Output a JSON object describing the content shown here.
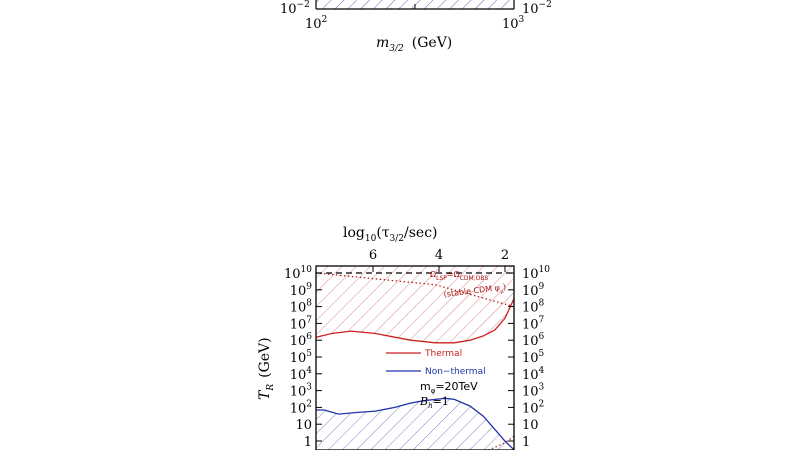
{
  "top_panel": {
    "x_tick_left_base": "10",
    "x_tick_left_exp": "2",
    "x_tick_right_base": "10",
    "x_tick_right_exp": "3",
    "y_tick_left": "10",
    "y_tick_left_exp": "−2",
    "y_tick_right": "10",
    "y_tick_right_exp": "−2",
    "xlabel_m": "m",
    "xlabel_sub": "3/2",
    "xlabel_unit": "(GeV)"
  },
  "chart_data": {
    "type": "area",
    "title": "",
    "top_axis_label_pre": "log",
    "top_axis_label_sub": "10",
    "top_axis_label_mid": "(τ",
    "top_axis_label_sub2": "3/2",
    "top_axis_label_post": "/sec)",
    "top_ticks": [
      "6",
      "4",
      "2"
    ],
    "top_tick_values": [
      6,
      4,
      2
    ],
    "ylabel_T": "T",
    "ylabel_sub": "R",
    "ylabel_unit": "(GeV)",
    "y_scale": "log",
    "y_ticks": [
      {
        "base": "10",
        "exp": "10",
        "value": 10000000000.0
      },
      {
        "base": "10",
        "exp": "9",
        "value": 1000000000.0
      },
      {
        "base": "10",
        "exp": "8",
        "value": 100000000.0
      },
      {
        "base": "10",
        "exp": "7",
        "value": 10000000.0
      },
      {
        "base": "10",
        "exp": "6",
        "value": 1000000.0
      },
      {
        "base": "10",
        "exp": "5",
        "value": 100000.0
      },
      {
        "base": "10",
        "exp": "4",
        "value": 10000.0
      },
      {
        "base": "10",
        "exp": "3",
        "value": 1000.0
      },
      {
        "base": "10",
        "exp": "2",
        "value": 100
      },
      {
        "base": "10",
        "exp": "",
        "value": 10
      },
      {
        "base": "1",
        "exp": "",
        "value": 1
      }
    ],
    "ylim": [
      0.5,
      20000000000.0
    ],
    "x_scale": "log",
    "xlim": [
      100,
      1000
    ],
    "series": [
      {
        "name": "Thermal",
        "color": "#cc2222",
        "x": [
          100,
          120,
          150,
          200,
          250,
          300,
          400,
          500,
          600,
          700,
          800,
          900,
          950,
          1000
        ],
        "y": [
          1500000.0,
          2500000.0,
          3500000.0,
          2500000.0,
          1500000.0,
          1000000.0,
          700000.0,
          700000.0,
          1000000.0,
          1800000.0,
          4000000.0,
          20000000.0,
          80000000.0,
          300000000.0
        ]
      },
      {
        "name": "Non-thermal",
        "color": "#2233aa",
        "x": [
          100,
          110,
          130,
          160,
          200,
          250,
          300,
          350,
          400,
          450,
          500,
          600,
          700,
          800,
          900,
          1000
        ],
        "y": [
          70,
          70,
          40,
          50,
          60,
          100,
          180,
          250,
          300,
          350,
          300,
          120,
          30,
          5,
          1,
          0.3
        ]
      }
    ],
    "dashed_line": {
      "y": 10000000000.0,
      "color": "#000000"
    },
    "dotted_line": {
      "color": "#aa1111",
      "x": [
        100,
        400,
        1000
      ],
      "y": [
        10000000000.0,
        2000000000.0,
        100000000.0
      ]
    },
    "annotations": {
      "omega_pre": "Ω",
      "omega_sub1": "LSP",
      "omega_eq": "=Ω",
      "omega_sub2": "CDM,OBS",
      "stable": "(stable CDM ψ",
      "stable_sub": "μ",
      "stable_post": ")",
      "legend_thermal": "Thermal",
      "legend_nonthermal": "Non−thermal",
      "mphi": "m",
      "mphi_sub": "φ",
      "mphi_val": "=20TeV",
      "bh": "B",
      "bh_sub": "h",
      "bh_val": "=1"
    }
  }
}
